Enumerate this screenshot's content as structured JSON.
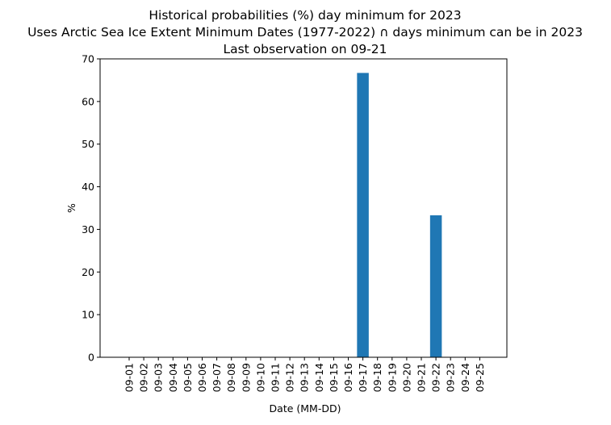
{
  "chart_data": {
    "type": "bar",
    "title_lines": [
      "Historical probabilities (%) day minimum for 2023",
      "Uses Arctic Sea Ice Extent Minimum Dates (1977-2022) ∩ days minimum can be in 2023",
      "Last observation on 09-21"
    ],
    "xlabel": "Date (MM-DD)",
    "ylabel": "%",
    "ylim": [
      0,
      70
    ],
    "yticks": [
      0,
      10,
      20,
      30,
      40,
      50,
      60,
      70
    ],
    "categories": [
      "09-01",
      "09-02",
      "09-03",
      "09-04",
      "09-05",
      "09-06",
      "09-07",
      "09-08",
      "09-09",
      "09-10",
      "09-11",
      "09-12",
      "09-13",
      "09-14",
      "09-15",
      "09-16",
      "09-17",
      "09-18",
      "09-19",
      "09-20",
      "09-21",
      "09-22",
      "09-23",
      "09-24",
      "09-25"
    ],
    "values": [
      0,
      0,
      0,
      0,
      0,
      0,
      0,
      0,
      0,
      0,
      0,
      0,
      0,
      0,
      0,
      0,
      66.7,
      0,
      0,
      0,
      0,
      33.3,
      0,
      0,
      0
    ],
    "bar_color": "#1f77b4",
    "grid": false,
    "legend": "none"
  }
}
